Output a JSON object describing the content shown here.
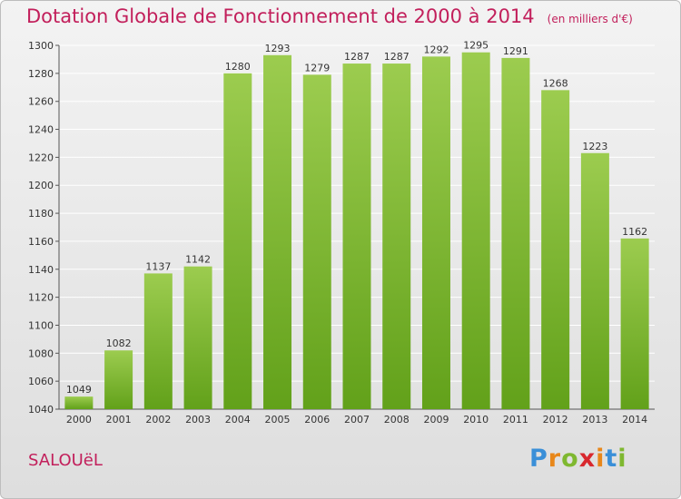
{
  "title": "Dotation Globale de Fonctionnement de 2000 à 2014",
  "unit": "(en milliers d'€)",
  "commune": "SALOUëL",
  "logo": {
    "letters": [
      "P",
      "r",
      "o",
      "x",
      "i",
      "t",
      "i"
    ],
    "colors": [
      "#3a8fd8",
      "#e8871a",
      "#7fb830",
      "#d8282e",
      "#e8871a",
      "#3a8fd8",
      "#7fb830"
    ]
  },
  "chart_data": {
    "type": "bar",
    "categories": [
      "2000",
      "2001",
      "2002",
      "2003",
      "2004",
      "2005",
      "2006",
      "2007",
      "2008",
      "2009",
      "2010",
      "2011",
      "2012",
      "2013",
      "2014"
    ],
    "values": [
      1049,
      1082,
      1137,
      1142,
      1280,
      1293,
      1279,
      1287,
      1287,
      1292,
      1295,
      1291,
      1268,
      1223,
      1162
    ],
    "ylim": [
      1040,
      1300
    ],
    "yticks": [
      1040,
      1060,
      1080,
      1100,
      1120,
      1140,
      1160,
      1180,
      1200,
      1220,
      1240,
      1260,
      1280,
      1300
    ],
    "grid": true,
    "bar_color_top": "#9ccc4f",
    "bar_color_bottom": "#62a11a"
  }
}
